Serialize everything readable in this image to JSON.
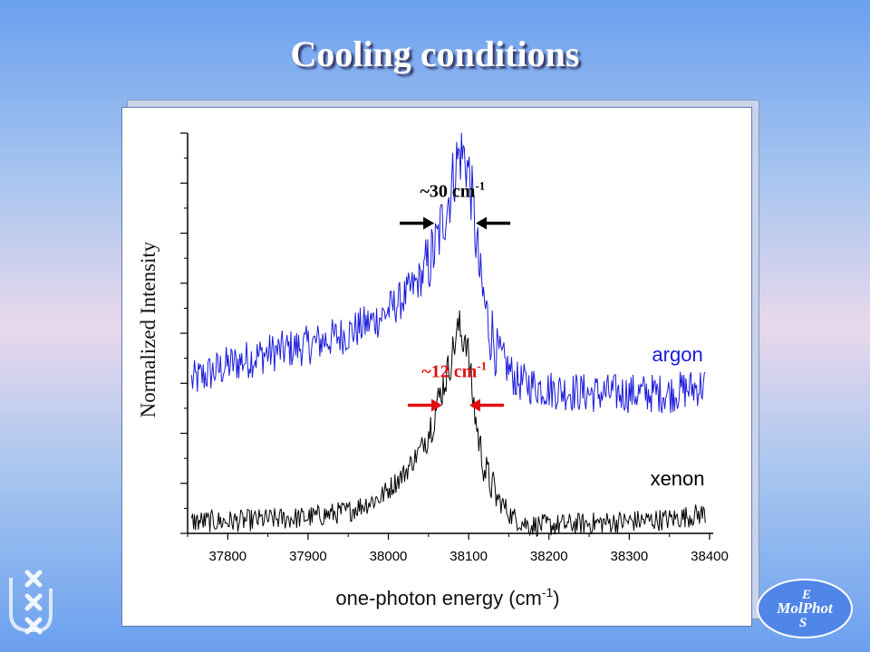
{
  "slide": {
    "title": "Cooling conditions"
  },
  "chart_data": {
    "type": "line",
    "title": "",
    "xlabel": "one-photon energy (cm-1)",
    "xlabel_main": "one-photon energy (cm",
    "xlabel_sup": "-1",
    "xlabel_tail": ")",
    "ylabel": "Normalized Intensity",
    "xlim": [
      37750,
      38400
    ],
    "ylim": [
      0,
      1
    ],
    "x_ticks": [
      37800,
      37900,
      38000,
      38100,
      38200,
      38300,
      38400
    ],
    "y_tick_labels_shown": false,
    "series": [
      {
        "name": "argon",
        "color": "#1a1adb",
        "points": [
          [
            37755,
            0.38
          ],
          [
            37800,
            0.42
          ],
          [
            37850,
            0.45
          ],
          [
            37900,
            0.47
          ],
          [
            37950,
            0.5
          ],
          [
            37990,
            0.54
          ],
          [
            38020,
            0.59
          ],
          [
            38045,
            0.65
          ],
          [
            38060,
            0.72
          ],
          [
            38070,
            0.8
          ],
          [
            38078,
            0.86
          ],
          [
            38085,
            0.93
          ],
          [
            38090,
            0.95
          ],
          [
            38096,
            0.94
          ],
          [
            38102,
            0.88
          ],
          [
            38108,
            0.76
          ],
          [
            38115,
            0.62
          ],
          [
            38125,
            0.52
          ],
          [
            38140,
            0.44
          ],
          [
            38160,
            0.38
          ],
          [
            38200,
            0.36
          ],
          [
            38250,
            0.35
          ],
          [
            38300,
            0.35
          ],
          [
            38350,
            0.35
          ],
          [
            38395,
            0.37
          ]
        ]
      },
      {
        "name": "xenon",
        "color": "#000000",
        "points": [
          [
            37755,
            0.03
          ],
          [
            37800,
            0.03
          ],
          [
            37850,
            0.035
          ],
          [
            37900,
            0.04
          ],
          [
            37950,
            0.055
          ],
          [
            37990,
            0.09
          ],
          [
            38020,
            0.15
          ],
          [
            38040,
            0.21
          ],
          [
            38055,
            0.28
          ],
          [
            38065,
            0.35
          ],
          [
            38075,
            0.41
          ],
          [
            38082,
            0.47
          ],
          [
            38088,
            0.52
          ],
          [
            38092,
            0.48
          ],
          [
            38096,
            0.5
          ],
          [
            38100,
            0.44
          ],
          [
            38105,
            0.34
          ],
          [
            38112,
            0.24
          ],
          [
            38120,
            0.16
          ],
          [
            38135,
            0.09
          ],
          [
            38155,
            0.04
          ],
          [
            38175,
            0.02
          ],
          [
            38200,
            0.02
          ],
          [
            38250,
            0.025
          ],
          [
            38300,
            0.03
          ],
          [
            38350,
            0.035
          ],
          [
            38395,
            0.05
          ]
        ]
      }
    ],
    "annotations": [
      {
        "id": "argon-width",
        "text": "~30 cm",
        "sup": "-1",
        "color": "#000000"
      },
      {
        "id": "xenon-width",
        "text": "~12 cm",
        "sup": "-1",
        "color": "#e01010"
      }
    ],
    "grid": false,
    "legend": "inline labels at right"
  },
  "logos": {
    "molphot": {
      "top": "E",
      "middle": "MolPhot",
      "bottom": "S"
    }
  }
}
